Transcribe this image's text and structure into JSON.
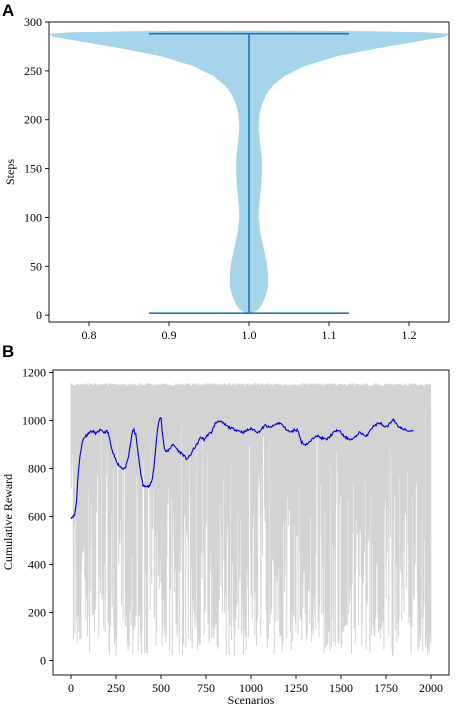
{
  "chart_data": [
    {
      "panel": "A",
      "type": "violin",
      "title": "",
      "xlabel": "",
      "ylabel": "Steps",
      "xlim": [
        0.75,
        1.25
      ],
      "ylim": [
        -7,
        300
      ],
      "x_ticks": [
        0.8,
        0.9,
        1.0,
        1.1,
        1.2
      ],
      "x_tick_labels": [
        "0.8",
        "0.9",
        "1.0",
        "1.1",
        "1.2"
      ],
      "y_ticks": [
        0,
        50,
        100,
        150,
        200,
        250,
        300
      ],
      "y_tick_labels": [
        "0",
        "50",
        "100",
        "150",
        "200",
        "250",
        "300"
      ],
      "position": 1.0,
      "min": 2,
      "max": 288,
      "cap_halfwidth": 0.125,
      "body_color": "#a6d4ea",
      "line_color": "#1f77b4",
      "profile": [
        {
          "y": 2,
          "w": 0.004
        },
        {
          "y": 6,
          "w": 0.012
        },
        {
          "y": 12,
          "w": 0.017
        },
        {
          "y": 20,
          "w": 0.021
        },
        {
          "y": 30,
          "w": 0.024
        },
        {
          "y": 42,
          "w": 0.024
        },
        {
          "y": 55,
          "w": 0.022
        },
        {
          "y": 70,
          "w": 0.018
        },
        {
          "y": 85,
          "w": 0.014
        },
        {
          "y": 100,
          "w": 0.012
        },
        {
          "y": 115,
          "w": 0.013
        },
        {
          "y": 130,
          "w": 0.015
        },
        {
          "y": 145,
          "w": 0.016
        },
        {
          "y": 160,
          "w": 0.016
        },
        {
          "y": 175,
          "w": 0.014
        },
        {
          "y": 190,
          "w": 0.012
        },
        {
          "y": 205,
          "w": 0.013
        },
        {
          "y": 215,
          "w": 0.016
        },
        {
          "y": 225,
          "w": 0.021
        },
        {
          "y": 235,
          "w": 0.03
        },
        {
          "y": 245,
          "w": 0.045
        },
        {
          "y": 255,
          "w": 0.07
        },
        {
          "y": 265,
          "w": 0.11
        },
        {
          "y": 273,
          "w": 0.16
        },
        {
          "y": 280,
          "w": 0.21
        },
        {
          "y": 285,
          "w": 0.245
        },
        {
          "y": 288,
          "w": 0.25
        },
        {
          "y": 289.5,
          "w": 0.22
        },
        {
          "y": 290.5,
          "w": 0.15
        },
        {
          "y": 291,
          "w": 0.06
        },
        {
          "y": 291.2,
          "w": 0.0
        }
      ]
    },
    {
      "panel": "B",
      "type": "line",
      "title": "",
      "xlabel": "Scenarios",
      "ylabel": "Cumulative Reward",
      "xlim": [
        -100,
        2100
      ],
      "ylim": [
        -60,
        1210
      ],
      "x_ticks": [
        0,
        250,
        500,
        750,
        1000,
        1250,
        1500,
        1750,
        2000
      ],
      "x_tick_labels": [
        "0",
        "250",
        "500",
        "750",
        "1000",
        "1250",
        "1500",
        "1750",
        "2000"
      ],
      "y_ticks": [
        0,
        200,
        400,
        600,
        800,
        1000,
        1200
      ],
      "y_tick_labels": [
        "0",
        "200",
        "400",
        "600",
        "800",
        "1000",
        "1200"
      ],
      "raw_series": {
        "color": "#d3d3d3",
        "x_start": 0,
        "x_end": 2000,
        "upper": 1155,
        "lower_bound": 20
      },
      "smoothed_series": {
        "color": "#0000cc",
        "x": [
          0,
          10,
          20,
          30,
          40,
          50,
          60,
          70,
          80,
          90,
          100,
          120,
          140,
          160,
          180,
          200,
          210,
          220,
          230,
          240,
          250,
          260,
          270,
          280,
          290,
          300,
          310,
          320,
          330,
          340,
          350,
          360,
          370,
          380,
          390,
          400,
          410,
          420,
          430,
          440,
          450,
          460,
          470,
          480,
          490,
          500,
          510,
          520,
          530,
          540,
          550,
          560,
          580,
          600,
          620,
          640,
          660,
          680,
          700,
          720,
          740,
          760,
          780,
          800,
          820,
          840,
          860,
          880,
          900,
          920,
          940,
          960,
          980,
          1000,
          1020,
          1040,
          1060,
          1080,
          1100,
          1120,
          1140,
          1160,
          1180,
          1200,
          1220,
          1240,
          1260,
          1280,
          1300,
          1320,
          1340,
          1360,
          1380,
          1400,
          1420,
          1440,
          1460,
          1480,
          1500,
          1520,
          1540,
          1560,
          1580,
          1600,
          1620,
          1640,
          1660,
          1680,
          1700,
          1720,
          1740,
          1760,
          1780,
          1790,
          1800,
          1820,
          1840,
          1860,
          1880,
          1900
        ],
        "y": [
          595,
          600,
          605,
          660,
          780,
          850,
          900,
          925,
          935,
          940,
          950,
          955,
          945,
          960,
          950,
          955,
          940,
          900,
          870,
          850,
          835,
          820,
          810,
          805,
          800,
          800,
          820,
          850,
          900,
          950,
          960,
          940,
          880,
          820,
          770,
          730,
          725,
          730,
          725,
          730,
          750,
          800,
          880,
          960,
          1005,
          1010,
          930,
          880,
          870,
          875,
          880,
          900,
          890,
          870,
          860,
          840,
          850,
          880,
          900,
          930,
          920,
          940,
          950,
          985,
          1000,
          990,
          980,
          970,
          965,
          960,
          955,
          950,
          960,
          965,
          960,
          950,
          965,
          980,
          970,
          975,
          985,
          990,
          975,
          960,
          950,
          960,
          960,
          910,
          900,
          905,
          920,
          940,
          930,
          925,
          920,
          935,
          950,
          960,
          950,
          930,
          925,
          920,
          930,
          950,
          945,
          930,
          960,
          975,
          985,
          990,
          970,
          975,
          995,
          1010,
          990,
          975,
          965,
          960,
          955,
          960
        ]
      }
    }
  ]
}
